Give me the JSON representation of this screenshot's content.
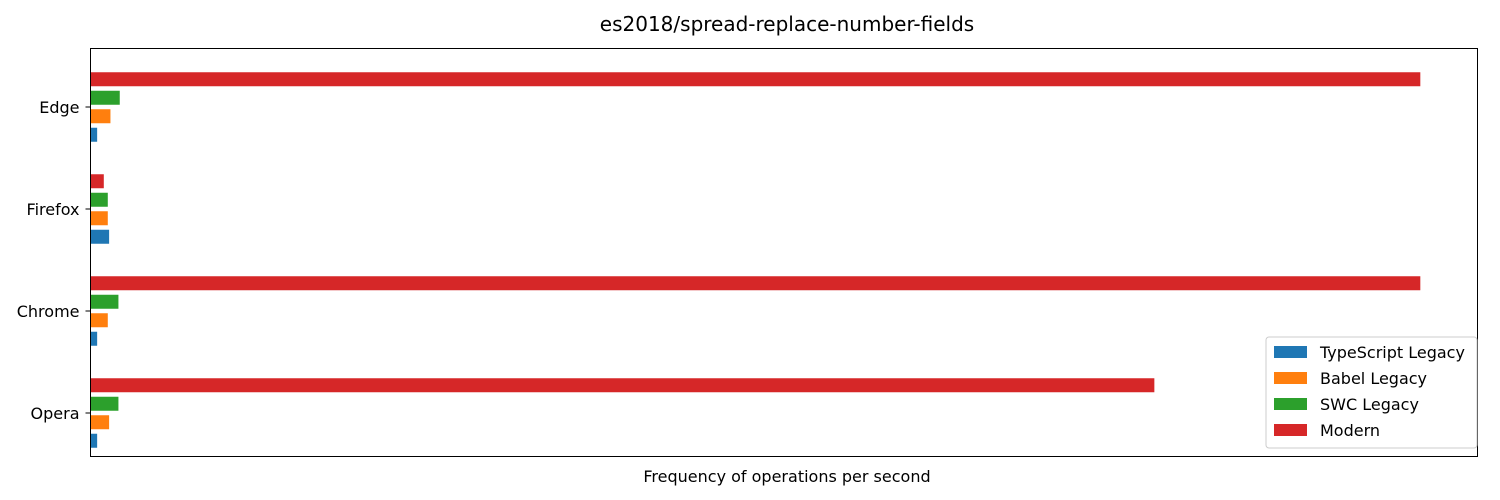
{
  "chart_data": {
    "type": "bar",
    "orientation": "horizontal",
    "title": "es2018/spread-replace-number-fields",
    "xlabel": "Frequency of operations per second",
    "ylabel": "",
    "x_ticks_shown": false,
    "grid": false,
    "legend_position": "lower-right",
    "categories": [
      "Edge",
      "Firefox",
      "Chrome",
      "Opera"
    ],
    "xlim": [
      0,
      1.043
    ],
    "series": [
      {
        "name": "TypeScript Legacy",
        "color": "#1f77b4",
        "values": [
          0.005,
          0.014,
          0.005,
          0.005
        ]
      },
      {
        "name": "Babel Legacy",
        "color": "#ff7f0e",
        "values": [
          0.015,
          0.013,
          0.013,
          0.014
        ]
      },
      {
        "name": "SWC Legacy",
        "color": "#2ca02c",
        "values": [
          0.022,
          0.013,
          0.021,
          0.021
        ]
      },
      {
        "name": "Modern",
        "color": "#d62728",
        "values": [
          1.0,
          0.01,
          1.0,
          0.8
        ]
      }
    ]
  }
}
